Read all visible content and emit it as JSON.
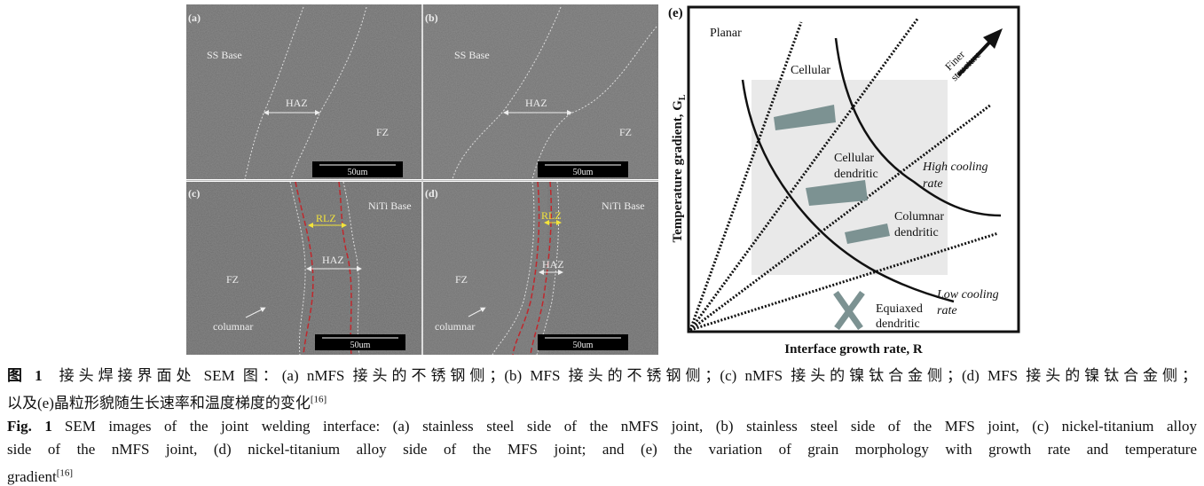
{
  "figure": {
    "panels": {
      "a": {
        "label": "(a)",
        "base": "SS Base",
        "haz": "HAZ",
        "fz": "FZ",
        "scale": "50um"
      },
      "b": {
        "label": "(b)",
        "base": "SS Base",
        "haz": "HAZ",
        "fz": "FZ",
        "scale": "50um"
      },
      "c": {
        "label": "(c)",
        "base": "NiTi Base",
        "rlz": "RLZ",
        "haz": "HAZ",
        "fz": "FZ",
        "columnar": "columnar",
        "scale": "50um"
      },
      "d": {
        "label": "(d)",
        "base": "NiTi Base",
        "rlz": "RLZ",
        "haz": "HAZ",
        "fz": "FZ",
        "columnar": "columnar",
        "scale": "50um"
      }
    },
    "diagram": {
      "label": "(e)",
      "xlabel": "Interface growth rate, R",
      "ylabel": "Temperature gradient, G",
      "ylabel_sub": "L",
      "regions": {
        "planar": "Planar",
        "cellular": "Cellular",
        "cellular_dendritic": [
          "Cellular",
          "dendritic"
        ],
        "columnar_dendritic": [
          "Columnar",
          "dendritic"
        ],
        "equiaxed_dendritic": [
          "Equiaxed",
          "dendritic"
        ]
      },
      "high_cooling": [
        "High cooling",
        "rate"
      ],
      "low_cooling": [
        "Low cooling",
        "rate"
      ],
      "finer": [
        "Finer",
        "structure"
      ]
    }
  },
  "caption": {
    "cn_label": "图 1",
    "cn_line1": "接头焊接界面处 SEM 图：(a) nMFS 接头的不锈钢侧；(b) MFS 接头的不锈钢侧；(c) nMFS 接头的镍钛合金侧；(d) MFS 接头的镍钛合金侧；",
    "cn_line2": "以及(e)晶粒形貌随生长速率和温度梯度的变化",
    "cn_ref": "[16]",
    "en_label": "Fig. 1",
    "en_line1": "SEM images of the joint welding interface: (a) stainless steel side of the nMFS joint, (b) stainless steel side of the MFS joint, (c) nickel-titanium alloy",
    "en_line2": "side of the nMFS joint, (d) nickel-titanium alloy side of the MFS joint; and (e) the variation of grain morphology with growth rate and temperature",
    "en_line3": "gradient",
    "en_ref": "[16]"
  }
}
